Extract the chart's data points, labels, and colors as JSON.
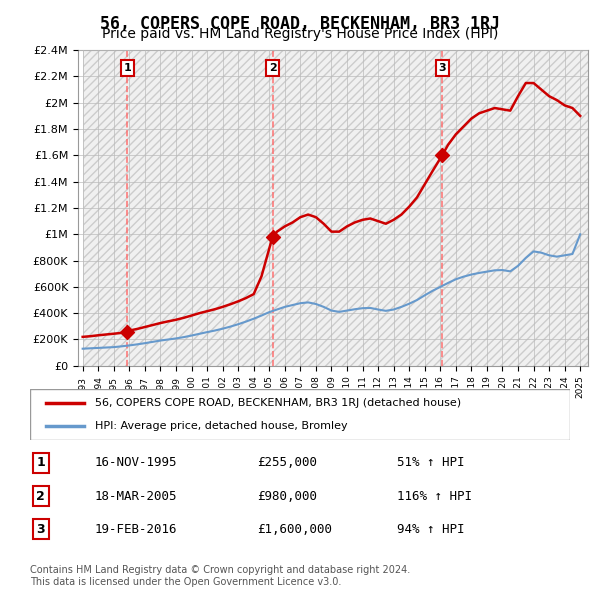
{
  "title": "56, COPERS COPE ROAD, BECKENHAM, BR3 1RJ",
  "subtitle": "Price paid vs. HM Land Registry's House Price Index (HPI)",
  "title_fontsize": 12,
  "subtitle_fontsize": 10,
  "ylim": [
    0,
    2400000
  ],
  "xlim_start": 1993,
  "xlim_end": 2025.5,
  "yticks": [
    0,
    200000,
    400000,
    600000,
    800000,
    1000000,
    1200000,
    1400000,
    1600000,
    1800000,
    2000000,
    2200000,
    2400000
  ],
  "ytick_labels": [
    "£0",
    "£200K",
    "£400K",
    "£600K",
    "£800K",
    "£1M",
    "£1.2M",
    "£1.4M",
    "£1.6M",
    "£1.8M",
    "£2M",
    "£2.2M",
    "£2.4M"
  ],
  "xticks": [
    1993,
    1994,
    1995,
    1996,
    1997,
    1998,
    1999,
    2000,
    2001,
    2002,
    2003,
    2004,
    2005,
    2006,
    2007,
    2008,
    2009,
    2010,
    2011,
    2012,
    2013,
    2014,
    2015,
    2016,
    2017,
    2018,
    2019,
    2020,
    2021,
    2022,
    2023,
    2024,
    2025
  ],
  "sale_years": [
    1995.88,
    2005.21,
    2016.12
  ],
  "sale_prices": [
    255000,
    980000,
    1600000
  ],
  "sale_labels": [
    "1",
    "2",
    "3"
  ],
  "sale_dates": [
    "16-NOV-1995",
    "18-MAR-2005",
    "19-FEB-2016"
  ],
  "sale_price_labels": [
    "£255,000",
    "£980,000",
    "£1,600,000"
  ],
  "sale_hpi_labels": [
    "51% ↑ HPI",
    "116% ↑ HPI",
    "94% ↑ HPI"
  ],
  "red_line_color": "#cc0000",
  "blue_line_color": "#6699cc",
  "dashed_line_color": "#ff4444",
  "background_color": "#ffffff",
  "hatch_color": "#cccccc",
  "grid_color": "#bbbbbb",
  "legend_label_red": "56, COPERS COPE ROAD, BECKENHAM, BR3 1RJ (detached house)",
  "legend_label_blue": "HPI: Average price, detached house, Bromley",
  "footer_text": "Contains HM Land Registry data © Crown copyright and database right 2024.\nThis data is licensed under the Open Government Licence v3.0.",
  "red_x": [
    1993.0,
    1993.5,
    1994.0,
    1994.5,
    1995.0,
    1995.88,
    1996.0,
    1996.5,
    1997.0,
    1997.5,
    1998.0,
    1998.5,
    1999.0,
    1999.5,
    2000.0,
    2000.5,
    2001.0,
    2001.5,
    2002.0,
    2002.5,
    2003.0,
    2003.5,
    2004.0,
    2004.5,
    2005.21,
    2005.5,
    2006.0,
    2006.5,
    2007.0,
    2007.5,
    2008.0,
    2008.5,
    2009.0,
    2009.5,
    2010.0,
    2010.5,
    2011.0,
    2011.5,
    2012.0,
    2012.5,
    2013.0,
    2013.5,
    2014.0,
    2014.5,
    2015.0,
    2015.5,
    2016.12,
    2016.5,
    2017.0,
    2017.5,
    2018.0,
    2018.5,
    2019.0,
    2019.5,
    2020.0,
    2020.5,
    2021.0,
    2021.5,
    2022.0,
    2022.5,
    2023.0,
    2023.5,
    2024.0,
    2024.5,
    2025.0
  ],
  "red_y": [
    220000,
    225000,
    232000,
    238000,
    244000,
    255000,
    268000,
    280000,
    295000,
    310000,
    325000,
    338000,
    350000,
    365000,
    382000,
    400000,
    415000,
    430000,
    448000,
    468000,
    490000,
    515000,
    545000,
    680000,
    980000,
    1020000,
    1060000,
    1090000,
    1130000,
    1150000,
    1130000,
    1080000,
    1020000,
    1020000,
    1060000,
    1090000,
    1110000,
    1120000,
    1100000,
    1080000,
    1110000,
    1150000,
    1210000,
    1280000,
    1380000,
    1480000,
    1600000,
    1680000,
    1760000,
    1820000,
    1880000,
    1920000,
    1940000,
    1960000,
    1950000,
    1940000,
    2050000,
    2150000,
    2150000,
    2100000,
    2050000,
    2020000,
    1980000,
    1960000,
    1900000
  ],
  "blue_x": [
    1993.0,
    1993.5,
    1994.0,
    1994.5,
    1995.0,
    1995.5,
    1996.0,
    1996.5,
    1997.0,
    1997.5,
    1998.0,
    1998.5,
    1999.0,
    1999.5,
    2000.0,
    2000.5,
    2001.0,
    2001.5,
    2002.0,
    2002.5,
    2003.0,
    2003.5,
    2004.0,
    2004.5,
    2005.0,
    2005.5,
    2006.0,
    2006.5,
    2007.0,
    2007.5,
    2008.0,
    2008.5,
    2009.0,
    2009.5,
    2010.0,
    2010.5,
    2011.0,
    2011.5,
    2012.0,
    2012.5,
    2013.0,
    2013.5,
    2014.0,
    2014.5,
    2015.0,
    2015.5,
    2016.0,
    2016.5,
    2017.0,
    2017.5,
    2018.0,
    2018.5,
    2019.0,
    2019.5,
    2020.0,
    2020.5,
    2021.0,
    2021.5,
    2022.0,
    2022.5,
    2023.0,
    2023.5,
    2024.0,
    2024.5,
    2025.0
  ],
  "blue_y": [
    130000,
    133000,
    136000,
    139000,
    142000,
    148000,
    155000,
    163000,
    172000,
    182000,
    192000,
    200000,
    208000,
    218000,
    230000,
    243000,
    256000,
    268000,
    282000,
    298000,
    316000,
    336000,
    358000,
    382000,
    408000,
    428000,
    448000,
    462000,
    476000,
    482000,
    470000,
    448000,
    420000,
    410000,
    420000,
    430000,
    438000,
    440000,
    428000,
    418000,
    428000,
    448000,
    472000,
    500000,
    536000,
    570000,
    600000,
    630000,
    658000,
    678000,
    694000,
    706000,
    716000,
    726000,
    728000,
    718000,
    760000,
    820000,
    870000,
    860000,
    840000,
    830000,
    840000,
    850000,
    1000000
  ]
}
